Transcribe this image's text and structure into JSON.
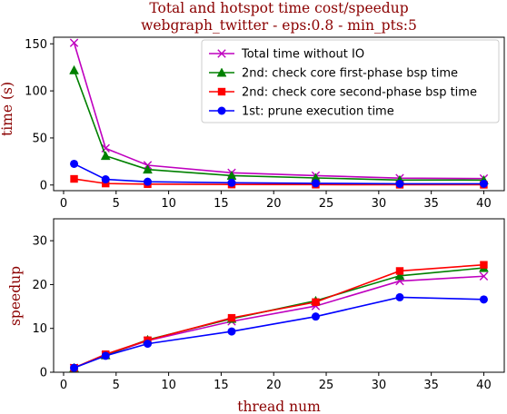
{
  "chart_data": [
    {
      "type": "line",
      "title": "Total and hotspot time cost/speedup",
      "subtitle": "webgraph_twitter - eps:0.8 - min_pts:5",
      "xlabel": "",
      "ylabel": "time (s)",
      "xlim": [
        -0.95,
        41.95
      ],
      "ylim": [
        -6,
        157
      ],
      "xticks": [
        0,
        5,
        10,
        15,
        20,
        25,
        30,
        35,
        40
      ],
      "yticks": [
        0,
        50,
        100,
        150
      ],
      "grid": false,
      "legend_position": "top-right",
      "x": [
        1,
        4,
        8,
        16,
        24,
        32,
        40
      ],
      "series": [
        {
          "name": "Total time without IO",
          "color": "#bf00bf",
          "marker": "x",
          "values": [
            151,
            39,
            21,
            13,
            10,
            7.3,
            6.9
          ]
        },
        {
          "name": "2nd: check core first-phase bsp time",
          "color": "#008000",
          "marker": "triangle",
          "values": [
            122,
            31,
            16.5,
            10,
            7.5,
            5.3,
            5.2
          ]
        },
        {
          "name": "2nd: check core second-phase bsp time",
          "color": "#ff0000",
          "marker": "square",
          "values": [
            6.5,
            1.6,
            0.9,
            0.55,
            0.4,
            0.3,
            0.27
          ]
        },
        {
          "name": "1st: prune execution time",
          "color": "#0000ff",
          "marker": "circle",
          "values": [
            22.5,
            6,
            3.5,
            2.4,
            1.8,
            1.3,
            1.35
          ]
        }
      ]
    },
    {
      "type": "line",
      "xlabel": "thread num",
      "ylabel": "speedup",
      "xlim": [
        -0.95,
        41.95
      ],
      "ylim": [
        0,
        35
      ],
      "xticks": [
        0,
        5,
        10,
        15,
        20,
        25,
        30,
        35,
        40
      ],
      "yticks": [
        0,
        10,
        20,
        30
      ],
      "grid": false,
      "x": [
        1,
        4,
        8,
        16,
        24,
        32,
        40
      ],
      "series": [
        {
          "name": "Total time without IO",
          "color": "#bf00bf",
          "marker": "x",
          "values": [
            1,
            3.9,
            7.2,
            11.6,
            15.1,
            20.8,
            21.9
          ]
        },
        {
          "name": "2nd: check core first-phase bsp time",
          "color": "#008000",
          "marker": "triangle",
          "values": [
            1,
            3.9,
            7.4,
            12.2,
            16.3,
            22,
            23.8
          ]
        },
        {
          "name": "2nd: check core second-phase bsp time",
          "color": "#ff0000",
          "marker": "square",
          "values": [
            1,
            4.1,
            7.3,
            12.4,
            16,
            23.1,
            24.5
          ]
        },
        {
          "name": "1st: prune execution time",
          "color": "#0000ff",
          "marker": "circle",
          "values": [
            1,
            3.75,
            6.5,
            9.3,
            12.7,
            17.1,
            16.6
          ]
        }
      ]
    }
  ]
}
